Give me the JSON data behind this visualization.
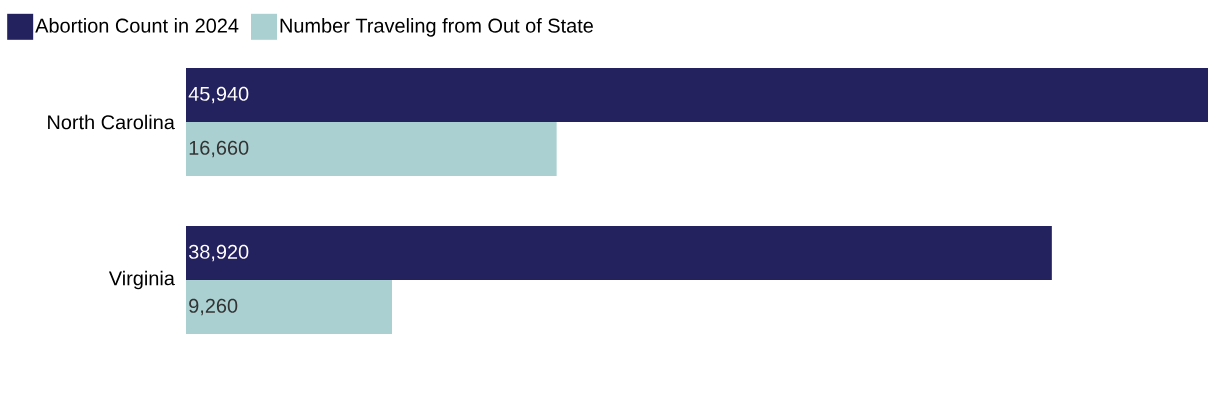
{
  "chart_data": {
    "type": "bar",
    "orientation": "horizontal",
    "categories": [
      "North Carolina",
      "Virginia"
    ],
    "series": [
      {
        "name": "Abortion Count in 2024",
        "color": "#24215f",
        "values": [
          45940,
          38920
        ],
        "value_labels": [
          "45,940",
          "38,920"
        ]
      },
      {
        "name": "Number Traveling from Out of State",
        "color": "#abd0d1",
        "values": [
          16660,
          9260
        ],
        "value_labels": [
          "16,660",
          "9,260"
        ]
      }
    ],
    "xlim": [
      0,
      45940
    ],
    "legend": "top left",
    "tick_labels": "y"
  }
}
